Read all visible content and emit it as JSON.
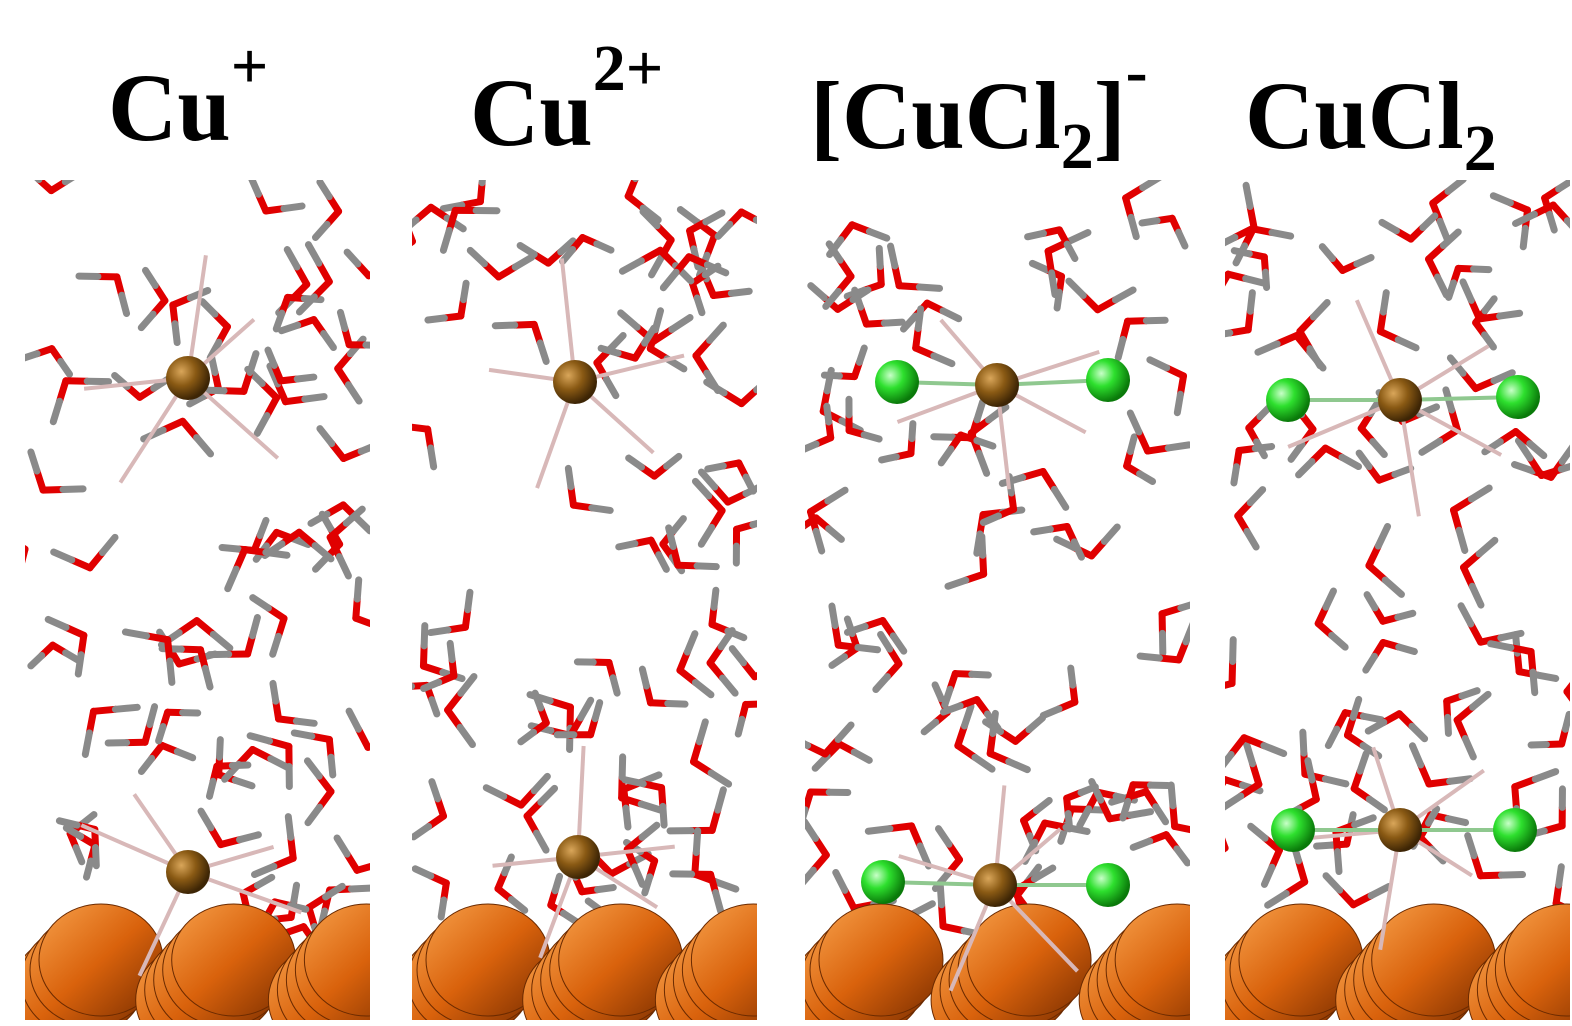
{
  "panels": [
    {
      "title": {
        "base": "Cu",
        "sup": "+"
      }
    },
    {
      "title": {
        "base": "Cu",
        "sup": "2+"
      }
    },
    {
      "title": {
        "base": "[CuCl",
        "sub": "2",
        "after": "]",
        "sup": "-"
      }
    },
    {
      "title": {
        "base": "CuCl",
        "sub": "2"
      }
    }
  ]
}
